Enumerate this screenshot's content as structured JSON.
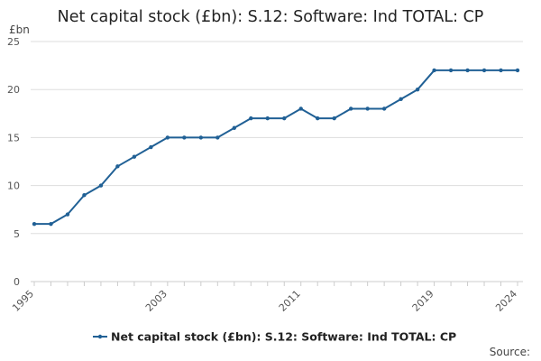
{
  "chart_data": {
    "type": "line",
    "title": "Net capital stock (£bn): S.12: Software: Ind TOTAL: CP",
    "ylabel": "£bn",
    "xlabel": "",
    "ylim": [
      0,
      25
    ],
    "yticks": [
      0,
      5,
      10,
      15,
      20,
      25
    ],
    "xtick_labels": [
      "1995",
      "2003",
      "2011",
      "2019",
      "2024"
    ],
    "grid": true,
    "legend_position": "bottom",
    "source_label": "Source:",
    "x": [
      1995,
      1996,
      1997,
      1998,
      1999,
      2000,
      2001,
      2002,
      2003,
      2004,
      2005,
      2006,
      2007,
      2008,
      2009,
      2010,
      2011,
      2012,
      2013,
      2014,
      2015,
      2016,
      2017,
      2018,
      2019,
      2020,
      2021,
      2022,
      2023,
      2024
    ],
    "series": [
      {
        "name": "Net capital stock (£bn): S.12: Software: Ind TOTAL: CP",
        "color": "#206095",
        "values": [
          6,
          6,
          7,
          9,
          10,
          12,
          13,
          14,
          15,
          15,
          15,
          15,
          16,
          17,
          17,
          17,
          18,
          17,
          17,
          18,
          18,
          18,
          19,
          20,
          22,
          22,
          22,
          22,
          22,
          22
        ]
      }
    ]
  }
}
